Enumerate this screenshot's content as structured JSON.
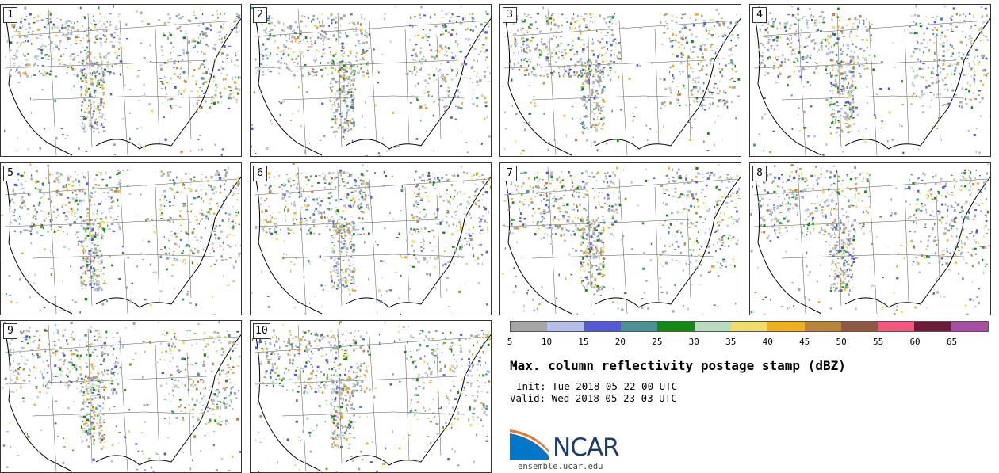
{
  "panels": [
    {
      "label": "1"
    },
    {
      "label": "2"
    },
    {
      "label": "3"
    },
    {
      "label": "4"
    },
    {
      "label": "5"
    },
    {
      "label": "6"
    },
    {
      "label": "7"
    },
    {
      "label": "8"
    },
    {
      "label": "9"
    },
    {
      "label": "10"
    }
  ],
  "colorbar": {
    "colors": [
      "#a6a6a6",
      "#b3bfe8",
      "#5559d4",
      "#4b9295",
      "#138b13",
      "#b9dbbe",
      "#f0dc6a",
      "#efaf1e",
      "#b8853a",
      "#8f5941",
      "#f5567d",
      "#6d1b3a",
      "#a84da6"
    ],
    "ticks": [
      "5",
      "10",
      "15",
      "20",
      "25",
      "30",
      "35",
      "40",
      "45",
      "50",
      "55",
      "60",
      "65"
    ]
  },
  "title": "Max. column reflectivity postage stamp (dBZ)",
  "init": "Init: Tue 2018-05-22 00 UTC",
  "valid": "Valid: Wed 2018-05-23 03 UTC",
  "logo": {
    "text": "NCAR",
    "url": "ensemble.ucar.edu",
    "colors": {
      "blue": "#0077c8",
      "navy": "#1c3d6b",
      "orange": "#e8772e"
    }
  }
}
